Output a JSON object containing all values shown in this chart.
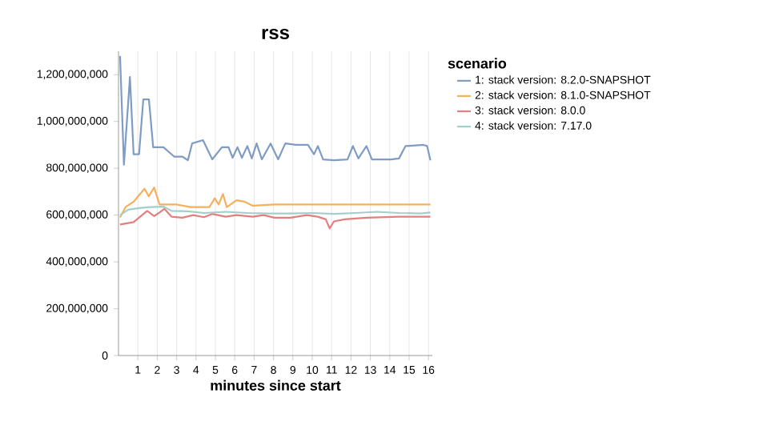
{
  "chart_data": {
    "type": "line",
    "title": "rss",
    "xlabel": "minutes since start",
    "legend_title": "scenario",
    "legend": "right",
    "grid": "x",
    "marker": "none",
    "line_style": "solid",
    "xlim": [
      0,
      16.2
    ],
    "xticks": [
      1,
      2,
      3,
      4,
      5,
      6,
      7,
      8,
      9,
      10,
      11,
      12,
      13,
      14,
      15,
      16
    ],
    "ylim": [
      0,
      1300000000
    ],
    "yticks": [
      {
        "value": 0,
        "label": "0"
      },
      {
        "value": 200000000,
        "label": "200,000,000"
      },
      {
        "value": 400000000,
        "label": "400,000,000"
      },
      {
        "value": 600000000,
        "label": "600,000,000"
      },
      {
        "value": 800000000,
        "label": "800,000,000"
      },
      {
        "value": 1000000000,
        "label": "1,000,000,000"
      },
      {
        "value": 1200000000,
        "label": "1,200,000,000"
      }
    ],
    "series": [
      {
        "name": "1: stack version: 8.2.0-SNAPSHOT",
        "color": "#7f9cc4",
        "x": [
          0.08,
          0.28,
          0.59,
          0.78,
          1.06,
          1.28,
          1.57,
          1.79,
          2.32,
          2.87,
          3.29,
          3.58,
          3.8,
          4.36,
          4.84,
          5.34,
          5.68,
          5.89,
          6.14,
          6.37,
          6.65,
          6.88,
          7.13,
          7.4,
          7.85,
          8.24,
          8.61,
          9.16,
          9.78,
          10.09,
          10.29,
          10.56,
          11.12,
          11.82,
          12.1,
          12.38,
          12.8,
          13.08,
          14.06,
          14.48,
          14.81,
          15.74,
          15.93,
          16.1
        ],
        "values": [
          1280000000,
          815000000,
          1190000000,
          860000000,
          860000000,
          1094000000,
          1094000000,
          890000000,
          890000000,
          850000000,
          850000000,
          834000000,
          906000000,
          920000000,
          838000000,
          890000000,
          890000000,
          845000000,
          890000000,
          845000000,
          895000000,
          842000000,
          906000000,
          838000000,
          906000000,
          838000000,
          906000000,
          900000000,
          900000000,
          860000000,
          895000000,
          838000000,
          834000000,
          838000000,
          895000000,
          842000000,
          895000000,
          838000000,
          838000000,
          842000000,
          895000000,
          900000000,
          895000000,
          834000000
        ]
      },
      {
        "name": "2: stack version: 8.1.0-SNAPSHOT",
        "color": "#f5b05c",
        "x": [
          0.08,
          0.36,
          0.78,
          1.34,
          1.56,
          1.84,
          2.12,
          3.02,
          3.72,
          4.69,
          4.97,
          5.17,
          5.39,
          5.59,
          6.09,
          6.51,
          6.93,
          8.05,
          10.0,
          12.24,
          14.47,
          16.1
        ],
        "values": [
          590000000,
          634000000,
          657000000,
          713000000,
          680000000,
          718000000,
          645000000,
          645000000,
          634000000,
          634000000,
          672000000,
          645000000,
          690000000,
          634000000,
          663000000,
          657000000,
          640000000,
          645000000,
          645000000,
          645000000,
          645000000,
          645000000
        ]
      },
      {
        "name": "3: stack version: 8.0.0",
        "color": "#e57f7f",
        "x": [
          0.08,
          0.78,
          1.48,
          1.84,
          2.12,
          2.37,
          2.74,
          3.3,
          3.86,
          4.41,
          4.83,
          5.53,
          6.09,
          6.93,
          7.49,
          8.05,
          8.88,
          9.72,
          10.28,
          10.7,
          10.9,
          11.12,
          11.68,
          12.8,
          14.47,
          16.1
        ],
        "values": [
          560000000,
          570000000,
          618000000,
          596000000,
          611000000,
          627000000,
          593000000,
          589000000,
          600000000,
          591000000,
          605000000,
          593000000,
          600000000,
          593000000,
          600000000,
          589000000,
          589000000,
          600000000,
          593000000,
          582000000,
          543000000,
          573000000,
          582000000,
          589000000,
          593000000,
          593000000
        ]
      },
      {
        "name": "4: stack version: 7.17.0",
        "color": "#a3cfc9",
        "x": [
          0.08,
          0.5,
          1.06,
          1.62,
          2.32,
          2.74,
          3.58,
          4.41,
          5.53,
          6.65,
          7.77,
          8.88,
          10.0,
          11.12,
          12.24,
          13.35,
          14.47,
          15.59,
          16.1
        ],
        "values": [
          600000000,
          623000000,
          630000000,
          634000000,
          636000000,
          618000000,
          616000000,
          609000000,
          614000000,
          609000000,
          607000000,
          607000000,
          609000000,
          605000000,
          609000000,
          614000000,
          609000000,
          607000000,
          611000000
        ]
      }
    ]
  }
}
